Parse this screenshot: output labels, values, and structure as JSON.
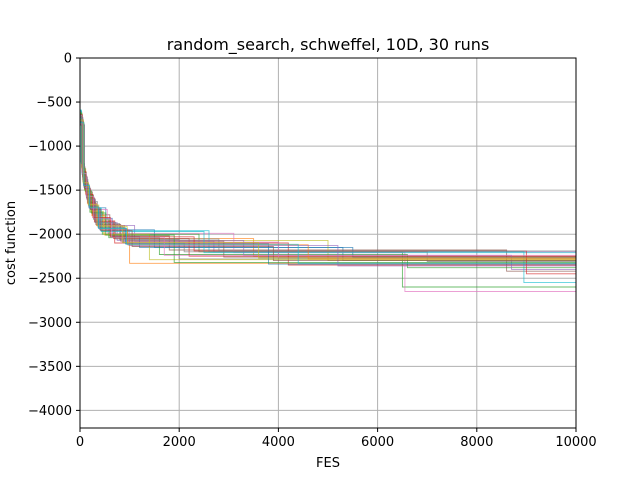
{
  "chart_data": {
    "type": "line",
    "title": "random_search, schweffel, 10D, 30 runs",
    "xlabel": "FES",
    "ylabel": "cost function",
    "xlim": [
      0,
      10000
    ],
    "ylim": [
      -4200,
      0
    ],
    "xticks": [
      0,
      2000,
      4000,
      6000,
      8000,
      10000
    ],
    "yticks": [
      0,
      -500,
      -1000,
      -1500,
      -2000,
      -2500,
      -3000,
      -3500,
      -4000
    ],
    "grid": true,
    "legend": "none",
    "series": [
      {
        "color": "#1f77b4",
        "x": [
          0,
          40,
          120,
          260,
          520,
          1500,
          5300,
          10000
        ],
        "y": [
          -650,
          -1300,
          -1550,
          -1700,
          -1950,
          -2150,
          -2300,
          -2300
        ]
      },
      {
        "color": "#ff7f0e",
        "x": [
          0,
          60,
          150,
          330,
          900,
          3500,
          10000
        ],
        "y": [
          -700,
          -1400,
          -1650,
          -1900,
          -2050,
          -2250,
          -2250
        ]
      },
      {
        "color": "#2ca02c",
        "x": [
          0,
          30,
          90,
          200,
          450,
          2400,
          6500,
          10000
        ],
        "y": [
          -600,
          -1200,
          -1500,
          -1750,
          -2000,
          -2200,
          -2600,
          -2600
        ]
      },
      {
        "color": "#d62728",
        "x": [
          0,
          50,
          140,
          300,
          700,
          4200,
          10000
        ],
        "y": [
          -680,
          -1350,
          -1600,
          -1850,
          -2100,
          -2350,
          -2350
        ]
      },
      {
        "color": "#9467bd",
        "x": [
          0,
          70,
          180,
          400,
          1100,
          2700,
          10000
        ],
        "y": [
          -720,
          -1450,
          -1700,
          -1900,
          -2080,
          -2200,
          -2200
        ]
      },
      {
        "color": "#8c564b",
        "x": [
          0,
          45,
          110,
          250,
          600,
          1800,
          8600,
          10000
        ],
        "y": [
          -640,
          -1280,
          -1520,
          -1780,
          -2020,
          -2180,
          -2420,
          -2420
        ]
      },
      {
        "color": "#e377c2",
        "x": [
          0,
          35,
          100,
          220,
          550,
          3100,
          6550,
          10000
        ],
        "y": [
          -610,
          -1230,
          -1490,
          -1720,
          -1990,
          -2210,
          -2650,
          -2650
        ]
      },
      {
        "color": "#7f7f7f",
        "x": [
          0,
          55,
          160,
          350,
          800,
          2000,
          10000
        ],
        "y": [
          -690,
          -1380,
          -1630,
          -1880,
          -2060,
          -2280,
          -2280
        ]
      },
      {
        "color": "#bcbd22",
        "x": [
          0,
          65,
          170,
          380,
          950,
          5000,
          10000
        ],
        "y": [
          -710,
          -1420,
          -1670,
          -1910,
          -2070,
          -2300,
          -2300
        ]
      },
      {
        "color": "#17becf",
        "x": [
          0,
          25,
          80,
          190,
          420,
          2600,
          8950,
          10000
        ],
        "y": [
          -590,
          -1180,
          -1460,
          -1700,
          -1960,
          -2200,
          -2550,
          -2550
        ]
      },
      {
        "color": "#1f77b4",
        "x": [
          0,
          42,
          130,
          280,
          650,
          1200,
          5500,
          10000
        ],
        "y": [
          -660,
          -1320,
          -1580,
          -1820,
          -2030,
          -2150,
          -2260,
          -2260
        ]
      },
      {
        "color": "#ff7f0e",
        "x": [
          0,
          38,
          115,
          240,
          500,
          1000,
          10000
        ],
        "y": [
          -630,
          -1260,
          -1540,
          -1790,
          -2010,
          -2330,
          -2330
        ]
      },
      {
        "color": "#2ca02c",
        "x": [
          0,
          48,
          125,
          270,
          580,
          1600,
          6600,
          10000
        ],
        "y": [
          -650,
          -1300,
          -1560,
          -1830,
          -2040,
          -2230,
          -2380,
          -2380
        ]
      },
      {
        "color": "#d62728",
        "x": [
          0,
          52,
          135,
          290,
          680,
          2200,
          10000
        ],
        "y": [
          -670,
          -1340,
          -1590,
          -1860,
          -2050,
          -2250,
          -2250
        ]
      },
      {
        "color": "#9467bd",
        "x": [
          0,
          58,
          145,
          310,
          750,
          3300,
          8700,
          10000
        ],
        "y": [
          -680,
          -1360,
          -1610,
          -1870,
          -2070,
          -2240,
          -2400,
          -2400
        ]
      },
      {
        "color": "#8c564b",
        "x": [
          0,
          62,
          155,
          320,
          820,
          2900,
          10000
        ],
        "y": [
          -700,
          -1400,
          -1640,
          -1890,
          -2080,
          -2260,
          -2260
        ]
      },
      {
        "color": "#e377c2",
        "x": [
          0,
          68,
          165,
          340,
          850,
          4000,
          10000
        ],
        "y": [
          -710,
          -1410,
          -1660,
          -1900,
          -2090,
          -2270,
          -2270
        ]
      },
      {
        "color": "#7f7f7f",
        "x": [
          0,
          72,
          175,
          360,
          880,
          2100,
          7000,
          10000
        ],
        "y": [
          -720,
          -1430,
          -1680,
          -1920,
          -2100,
          -2200,
          -2310,
          -2310
        ]
      },
      {
        "color": "#bcbd22",
        "x": [
          0,
          33,
          95,
          210,
          470,
          1400,
          10000
        ],
        "y": [
          -620,
          -1240,
          -1500,
          -1740,
          -2000,
          -2290,
          -2290
        ]
      },
      {
        "color": "#17becf",
        "x": [
          0,
          28,
          85,
          195,
          430,
          2500,
          10000
        ],
        "y": [
          -600,
          -1200,
          -1470,
          -1710,
          -1970,
          -2210,
          -2210
        ]
      },
      {
        "color": "#1f77b4",
        "x": [
          0,
          75,
          185,
          370,
          920,
          3800,
          10000
        ],
        "y": [
          -730,
          -1440,
          -1690,
          -1930,
          -2110,
          -2340,
          -2340
        ]
      },
      {
        "color": "#ff7f0e",
        "x": [
          0,
          80,
          195,
          390,
          960,
          4600,
          10000
        ],
        "y": [
          -740,
          -1460,
          -1700,
          -1940,
          -2120,
          -2280,
          -2280
        ]
      },
      {
        "color": "#2ca02c",
        "x": [
          0,
          36,
          105,
          230,
          520,
          1900,
          10000
        ],
        "y": [
          -625,
          -1250,
          -1510,
          -1760,
          -2010,
          -2320,
          -2320
        ]
      },
      {
        "color": "#d62728",
        "x": [
          0,
          44,
          120,
          260,
          610,
          2300,
          9000,
          10000
        ],
        "y": [
          -645,
          -1290,
          -1550,
          -1810,
          -2030,
          -2190,
          -2450,
          -2450
        ]
      },
      {
        "color": "#9467bd",
        "x": [
          0,
          85,
          200,
          400,
          990,
          5200,
          10000
        ],
        "y": [
          -750,
          -1470,
          -1710,
          -1950,
          -2130,
          -2360,
          -2360
        ]
      },
      {
        "color": "#8c564b",
        "x": [
          0,
          90,
          210,
          420,
          1050,
          3900,
          10000
        ],
        "y": [
          -760,
          -1480,
          -1720,
          -1960,
          -2140,
          -2300,
          -2300
        ]
      },
      {
        "color": "#e377c2",
        "x": [
          0,
          46,
          128,
          275,
          640,
          1700,
          10000
        ],
        "y": [
          -655,
          -1310,
          -1570,
          -1825,
          -2035,
          -2240,
          -2240
        ]
      },
      {
        "color": "#7f7f7f",
        "x": [
          0,
          54,
          148,
          305,
          720,
          2800,
          10000
        ],
        "y": [
          -675,
          -1350,
          -1600,
          -1865,
          -2055,
          -2190,
          -2190
        ]
      },
      {
        "color": "#bcbd22",
        "x": [
          0,
          66,
          168,
          345,
          860,
          3600,
          10000
        ],
        "y": [
          -705,
          -1415,
          -1665,
          -1905,
          -2095,
          -2270,
          -2270
        ]
      },
      {
        "color": "#17becf",
        "x": [
          0,
          78,
          190,
          380,
          940,
          4400,
          10000
        ],
        "y": [
          -735,
          -1450,
          -1695,
          -1935,
          -2115,
          -2330,
          -2330
        ]
      }
    ]
  }
}
